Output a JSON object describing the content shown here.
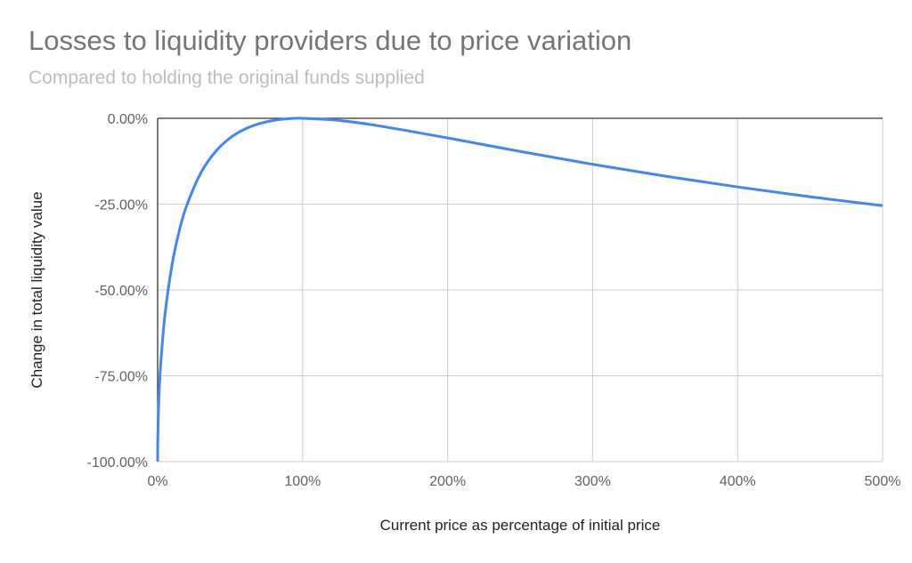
{
  "chart_data": {
    "type": "line",
    "title": "Losses to liquidity providers due to price variation",
    "subtitle": "Compared to holding the original funds supplied",
    "xlabel": "Current price as percentage of initial price",
    "ylabel": "Change in total liquidity value",
    "xlim": [
      0,
      500
    ],
    "ylim": [
      -100,
      0
    ],
    "x_ticks": [
      "0%",
      "100%",
      "200%",
      "300%",
      "400%",
      "500%"
    ],
    "y_ticks": [
      "0.00%",
      "-25.00%",
      "-50.00%",
      "-75.00%",
      "-100.00%"
    ],
    "grid": true,
    "legend": "none",
    "color": "#4285f4",
    "x": [
      0,
      0.1,
      0.5,
      1,
      2,
      5,
      10,
      15,
      20,
      30,
      40,
      50,
      60,
      70,
      80,
      90,
      100,
      125,
      150,
      200,
      250,
      300,
      350,
      400,
      450,
      500
    ],
    "y": [
      -100,
      -93.68,
      -85.93,
      -80.2,
      -72.27,
      -57.41,
      -42.5,
      -32.64,
      -25.46,
      -15.74,
      -9.65,
      -5.72,
      -3.18,
      -1.57,
      -0.62,
      -0.14,
      0,
      -0.62,
      -2.02,
      -5.72,
      -9.65,
      -13.4,
      -16.85,
      -20.0,
      -22.86,
      -25.46
    ]
  }
}
